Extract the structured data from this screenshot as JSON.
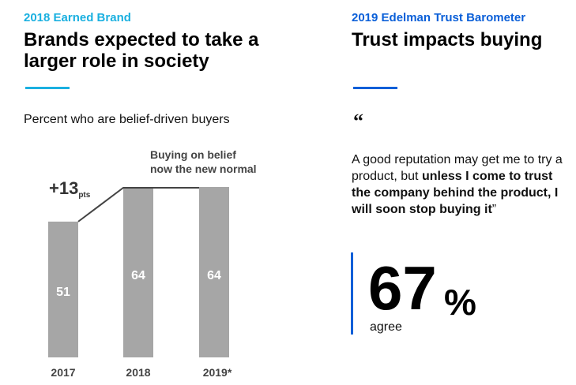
{
  "left": {
    "kicker": "2018 Earned Brand",
    "title": "Brands expected to take a larger role in society",
    "subtitle": "Percent who are belief-driven buyers"
  },
  "right": {
    "kicker": "2019 Edelman Trust Barometer",
    "title": "Trust impacts buying",
    "quote_mark": "“",
    "quote_plain": "A good reputation may get me to try a product, but ",
    "quote_bold": "unless I come to trust the company behind the product, I will soon stop buying it",
    "quote_close": "”",
    "stat_value": "67",
    "stat_unit": "%",
    "stat_label": "agree"
  },
  "chart_data": {
    "type": "bar",
    "categories": [
      "2017",
      "2018",
      "2019*"
    ],
    "values": [
      51,
      64,
      64
    ],
    "data_labels": [
      "51",
      "64",
      "64"
    ],
    "title": "Percent who are belief-driven buyers",
    "xlabel": "",
    "ylabel": "",
    "ylim": [
      0,
      64
    ],
    "bar_color": "#a6a6a6",
    "annotations": {
      "change_value": "+13",
      "change_unit": "pts",
      "note_line1": "Buying on belief",
      "note_line2": "now the new normal"
    },
    "grid": false,
    "legend": "none"
  }
}
